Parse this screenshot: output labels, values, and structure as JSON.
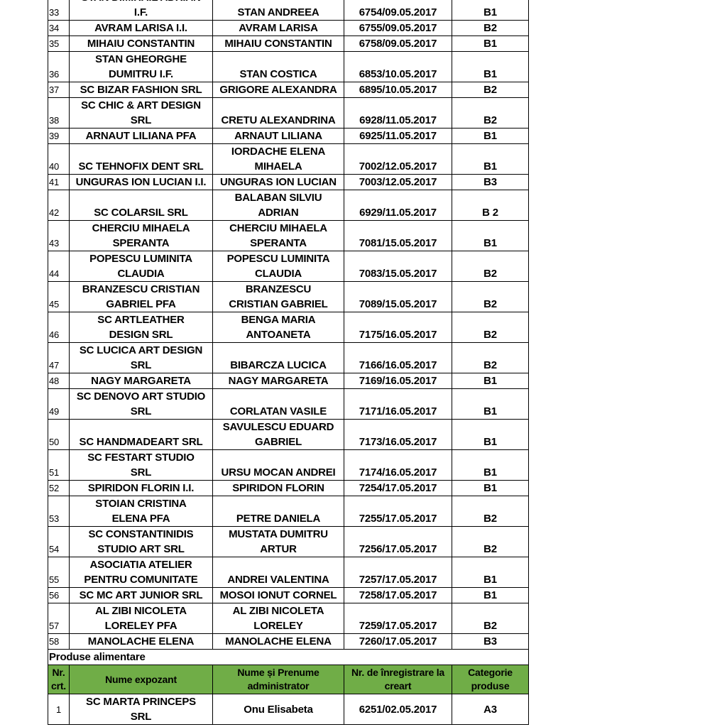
{
  "rows": [
    {
      "nr": "33",
      "expozant": "STAN D.MIHAIL ADRIAN\nI.F.",
      "administrator": "STAN ANDREEA",
      "inregistrare": "6754/09.05.2017",
      "categorie": "B1"
    },
    {
      "nr": "34",
      "expozant": "AVRAM LARISA I.I.",
      "administrator": "AVRAM LARISA",
      "inregistrare": "6755/09.05.2017",
      "categorie": "B2"
    },
    {
      "nr": "35",
      "expozant": "MIHAIU CONSTANTIN",
      "administrator": "MIHAIU CONSTANTIN",
      "inregistrare": "6758/09.05.2017",
      "categorie": "B1"
    },
    {
      "nr": "36",
      "expozant": "STAN GHEORGHE\nDUMITRU I.F.",
      "administrator": "STAN COSTICA",
      "inregistrare": "6853/10.05.2017",
      "categorie": "B1"
    },
    {
      "nr": "37",
      "expozant": "SC BIZAR FASHION SRL",
      "administrator": "GRIGORE ALEXANDRA",
      "inregistrare": "6895/10.05.2017",
      "categorie": "B2"
    },
    {
      "nr": "38",
      "expozant": "SC CHIC & ART DESIGN\nSRL",
      "administrator": "CRETU ALEXANDRINA",
      "inregistrare": "6928/11.05.2017",
      "categorie": "B2"
    },
    {
      "nr": "39",
      "expozant": "ARNAUT LILIANA PFA",
      "administrator": "ARNAUT LILIANA",
      "inregistrare": "6925/11.05.2017",
      "categorie": "B1"
    },
    {
      "nr": "40",
      "expozant": "SC TEHNOFIX DENT SRL",
      "administrator": "IORDACHE ELENA\nMIHAELA",
      "inregistrare": "7002/12.05.2017",
      "categorie": "B1"
    },
    {
      "nr": "41",
      "expozant": "UNGURAS ION LUCIAN I.I.",
      "administrator": "UNGURAS ION LUCIAN",
      "inregistrare": "7003/12.05.2017",
      "categorie": "B3"
    },
    {
      "nr": "42",
      "expozant": "SC COLARSIL SRL",
      "administrator": "BALABAN SILVIU\nADRIAN",
      "inregistrare": "6929/11.05.2017",
      "categorie": "B 2"
    },
    {
      "nr": "43",
      "expozant": "CHERCIU MIHAELA\nSPERANTA",
      "administrator": "CHERCIU MIHAELA\nSPERANTA",
      "inregistrare": "7081/15.05.2017",
      "categorie": "B1"
    },
    {
      "nr": "44",
      "expozant": "POPESCU LUMINITA\nCLAUDIA",
      "administrator": "POPESCU LUMINITA\nCLAUDIA",
      "inregistrare": "7083/15.05.2017",
      "categorie": "B2"
    },
    {
      "nr": "45",
      "expozant": "BRANZESCU CRISTIAN\nGABRIEL PFA",
      "administrator": "BRANZESCU\nCRISTIAN GABRIEL",
      "inregistrare": "7089/15.05.2017",
      "categorie": "B2"
    },
    {
      "nr": "46",
      "expozant": "SC ARTLEATHER\nDESIGN SRL",
      "administrator": "BENGA MARIA\nANTOANETA",
      "inregistrare": "7175/16.05.2017",
      "categorie": "B2"
    },
    {
      "nr": "47",
      "expozant": "SC LUCICA ART DESIGN\nSRL",
      "administrator": "BIBARCZA LUCICA",
      "inregistrare": "7166/16.05.2017",
      "categorie": "B2"
    },
    {
      "nr": "48",
      "expozant": "NAGY MARGARETA",
      "administrator": "NAGY MARGARETA",
      "inregistrare": "7169/16.05.2017",
      "categorie": "B1"
    },
    {
      "nr": "49",
      "expozant": "SC DENOVO ART STUDIO\nSRL",
      "administrator": "CORLATAN VASILE",
      "inregistrare": "7171/16.05.2017",
      "categorie": "B1"
    },
    {
      "nr": "50",
      "expozant": "SC HANDMADEART SRL",
      "administrator": "SAVULESCU EDUARD\nGABRIEL",
      "inregistrare": "7173/16.05.2017",
      "categorie": "B1"
    },
    {
      "nr": "51",
      "expozant": "SC FESTART STUDIO\nSRL",
      "administrator": "URSU MOCAN ANDREI",
      "inregistrare": "7174/16.05.2017",
      "categorie": "B1"
    },
    {
      "nr": "52",
      "expozant": "SPIRIDON FLORIN I.I.",
      "administrator": "SPIRIDON FLORIN",
      "inregistrare": "7254/17.05.2017",
      "categorie": "B1"
    },
    {
      "nr": "53",
      "expozant": "STOIAN CRISTINA\nELENA PFA",
      "administrator": "PETRE DANIELA",
      "inregistrare": "7255/17.05.2017",
      "categorie": "B2"
    },
    {
      "nr": "54",
      "expozant": "SC CONSTANTINIDIS\nSTUDIO ART SRL",
      "administrator": "MUSTATA DUMITRU\nARTUR",
      "inregistrare": "7256/17.05.2017",
      "categorie": "B2"
    },
    {
      "nr": "55",
      "expozant": "ASOCIATIA ATELIER\nPENTRU COMUNITATE",
      "administrator": "ANDREI VALENTINA",
      "inregistrare": "7257/17.05.2017",
      "categorie": "B1"
    },
    {
      "nr": "56",
      "expozant": "SC MC ART JUNIOR SRL",
      "administrator": "MOSOI IONUT CORNEL",
      "inregistrare": "7258/17.05.2017",
      "categorie": "B1"
    },
    {
      "nr": "57",
      "expozant": "AL ZIBI NICOLETA\nLORELEY PFA",
      "administrator": "AL ZIBI NICOLETA\nLORELEY",
      "inregistrare": "7259/17.05.2017",
      "categorie": "B2"
    },
    {
      "nr": "58",
      "expozant": "MANOLACHE ELENA",
      "administrator": "MANOLACHE ELENA",
      "inregistrare": "7260/17.05.2017",
      "categorie": "B3"
    }
  ],
  "section": {
    "title": "Produse alimentare",
    "header_color": "#70ad47",
    "headers": [
      "Nr.\ncrt.",
      "Nume expozant",
      "Nume și Prenume\nadministrator",
      "Nr. de înregistrare la\ncreart",
      "Categorie\nproduse"
    ],
    "rows": [
      {
        "nr": "1",
        "expozant": "SC MARTA PRINCEPS\nSRL",
        "administrator": "Onu Elisabeta",
        "inregistrare": "6251/02.05.2017",
        "categorie": "A3"
      }
    ]
  }
}
